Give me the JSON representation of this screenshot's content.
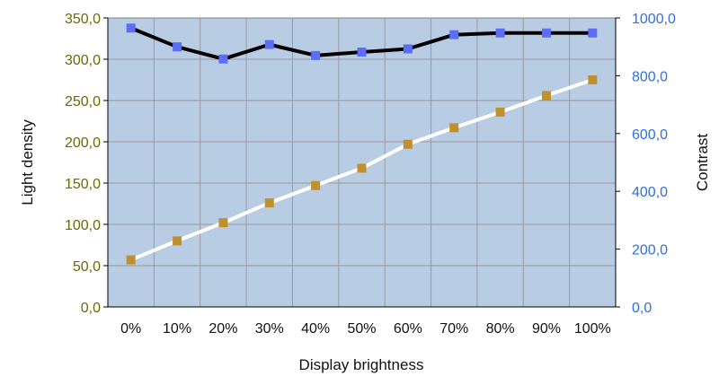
{
  "chart_data": {
    "type": "line",
    "title": "",
    "xlabel": "Display brightness",
    "ylabel_left": "Light density",
    "ylabel_right": "Contrast",
    "categories": [
      "0%",
      "10%",
      "20%",
      "30%",
      "40%",
      "50%",
      "60%",
      "70%",
      "80%",
      "90%",
      "100%"
    ],
    "ylim_left": [
      0,
      350
    ],
    "ylim_right": [
      0,
      1000
    ],
    "yticks_left": [
      "0,0",
      "50,0",
      "100,0",
      "150,0",
      "200,0",
      "250,0",
      "300,0",
      "350,0"
    ],
    "yticks_right": [
      "0,0",
      "200,0",
      "400,0",
      "600,0",
      "800,0",
      "1000,0"
    ],
    "grid": true,
    "legend": "none",
    "colors": {
      "plot_background": "#b8cce4",
      "grid": "#9a9a9a",
      "left_axis_text": "#6b6b00",
      "right_axis_text": "#2f6fe0"
    },
    "series": [
      {
        "axis": "right",
        "line_color": "#000000",
        "marker_color": "#5b6ef5",
        "values": [
          965,
          900,
          858,
          908,
          870,
          882,
          893,
          942,
          948,
          948,
          948
        ]
      },
      {
        "axis": "left",
        "line_color": "#ffffff",
        "marker_color": "#c0902a",
        "values": [
          57,
          80,
          102,
          126,
          147,
          168,
          197,
          217,
          236,
          256,
          275
        ]
      }
    ]
  }
}
